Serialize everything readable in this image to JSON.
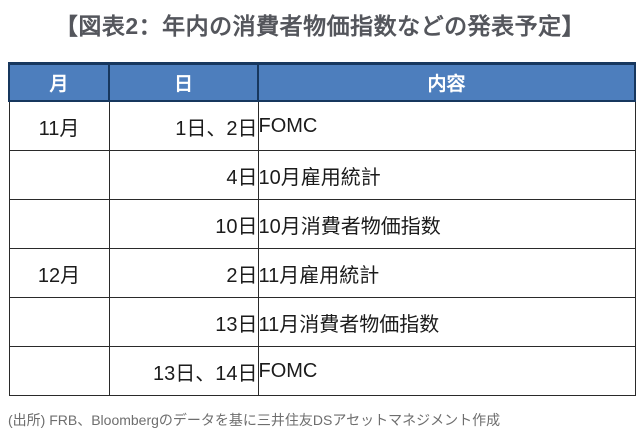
{
  "title": "【図表2：年内の消費者物価指数などの発表予定】",
  "table": {
    "headers": [
      "月",
      "日",
      "内容"
    ],
    "rows": [
      {
        "month": "11月",
        "day": "1日、2日",
        "content": "FOMC"
      },
      {
        "month": "",
        "day": "4日",
        "content": "10月雇用統計"
      },
      {
        "month": "",
        "day": "10日",
        "content": "10月消費者物価指数"
      },
      {
        "month": "12月",
        "day": "2日",
        "content": "11月雇用統計"
      },
      {
        "month": "",
        "day": "13日",
        "content": "11月消費者物価指数"
      },
      {
        "month": "",
        "day": "13日、14日",
        "content": "FOMC"
      }
    ]
  },
  "source_note": "(出所) FRB、Bloombergのデータを基に三井住友DSアセットマネジメント作成",
  "colors": {
    "header_background": "#4d7ebd",
    "header_text": "#ffffff",
    "outer_border": "#17375e",
    "body_border": "#2a2a2a",
    "title_text": "#54565c",
    "body_text": "#1b1b1b",
    "source_text": "#6e6e6e",
    "page_background": "#ffffff"
  }
}
